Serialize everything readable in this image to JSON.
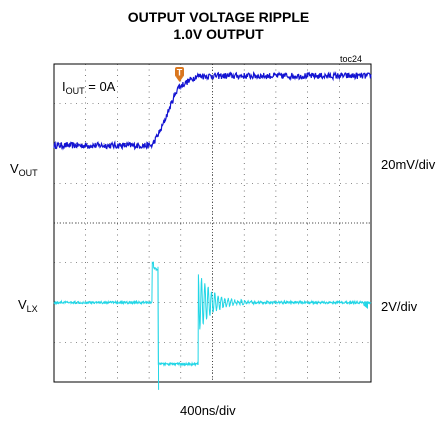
{
  "title_line1": "OUTPUT VOLTAGE RIPPLE",
  "title_line2": "1.0V OUTPUT",
  "figure_id": "toc24",
  "iout": {
    "main": "I",
    "sub": "OUT",
    "rest": " = 0A"
  },
  "vout": {
    "main": "V",
    "sub": "OUT"
  },
  "vlx": {
    "main": "V",
    "sub": "LX"
  },
  "right_top": "20mV/div",
  "right_bottom": "2V/div",
  "xscale": "400ns/div",
  "trigger_marker": "T",
  "colors": {
    "vout": "#1414d2",
    "vlx": "#22d6e6",
    "trigger": "#d9761e",
    "grid": "#222222"
  },
  "chart_data": {
    "type": "line",
    "title": "OUTPUT VOLTAGE RIPPLE 1.0V OUTPUT",
    "x_divisions": 10,
    "y_divisions": 8,
    "xscale": "400ns/div",
    "series": [
      {
        "name": "VOUT",
        "scale": "20mV/div",
        "points": [
          [
            0,
            5.95
          ],
          [
            3.1,
            5.95
          ],
          [
            3.4,
            6.4
          ],
          [
            3.9,
            7.4
          ],
          [
            4.5,
            7.7
          ],
          [
            10,
            7.7
          ]
        ]
      },
      {
        "name": "VLX",
        "scale": "2V/div",
        "points": [
          [
            0,
            2.0
          ],
          [
            3.1,
            2.0
          ],
          [
            3.12,
            2.9
          ],
          [
            3.25,
            2.85
          ],
          [
            3.28,
            0.5
          ],
          [
            3.4,
            0.45
          ],
          [
            4.5,
            0.45
          ],
          [
            4.6,
            2.7
          ],
          [
            5.2,
            2.0
          ],
          [
            10,
            2.0
          ]
        ]
      }
    ]
  }
}
